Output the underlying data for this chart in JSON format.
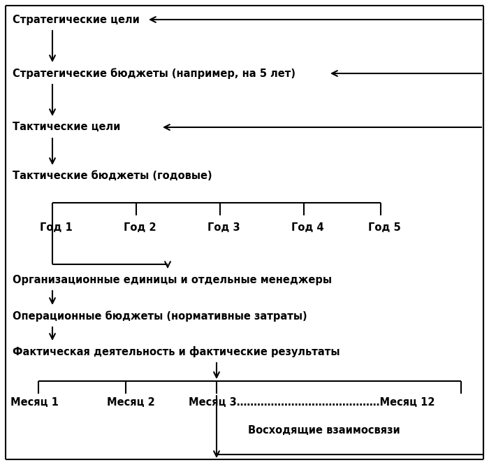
{
  "bg_color": "#ffffff",
  "text_color": "#000000",
  "font_size": 10.5,
  "border_color": "#000000",
  "arrow_color": "#000000",
  "lw": 1.5,
  "items": [
    {
      "id": "strat_celi",
      "text": "Стратегические цели"
    },
    {
      "id": "strat_bud",
      "text": "Стратегические бюджеты (например, на 5 лет)"
    },
    {
      "id": "takt_celi",
      "text": "Тактические цели"
    },
    {
      "id": "takt_bud",
      "text": "Тактические бюджеты (годовые)"
    },
    {
      "id": "org_ed",
      "text": "Организационные единицы и отдельные менеджеры"
    },
    {
      "id": "oper_bud",
      "text": "Операционные бюджеты (нормативные затраты)"
    },
    {
      "id": "fact_deyat",
      "text": "Фактическая деятельность и фактические результаты"
    }
  ],
  "year_texts": [
    "Год 1",
    "Год 2",
    "Год 3",
    "Год 4",
    "Год 5"
  ],
  "month_text1": "Месяц 1",
  "month_text2": "Месяц 2",
  "month_text3": "Месяц 3……………………………………Месяц 12",
  "voskhod_text": "Восходящие взаимосвязи"
}
